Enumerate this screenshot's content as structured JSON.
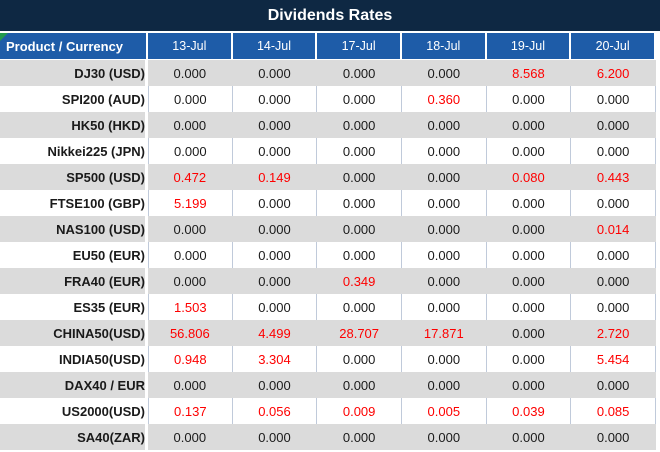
{
  "title": "Dividends Rates",
  "columns": {
    "product_header": "Product / Currency",
    "dates": [
      "13-Jul",
      "14-Jul",
      "17-Jul",
      "18-Jul",
      "19-Jul",
      "20-Jul"
    ]
  },
  "rows": [
    {
      "product": "DJ30 (USD)",
      "values": [
        "0.000",
        "0.000",
        "0.000",
        "0.000",
        "8.568",
        "6.200"
      ],
      "red": [
        false,
        false,
        false,
        false,
        true,
        true
      ]
    },
    {
      "product": "SPI200 (AUD)",
      "values": [
        "0.000",
        "0.000",
        "0.000",
        "0.360",
        "0.000",
        "0.000"
      ],
      "red": [
        false,
        false,
        false,
        true,
        false,
        false
      ]
    },
    {
      "product": "HK50 (HKD)",
      "values": [
        "0.000",
        "0.000",
        "0.000",
        "0.000",
        "0.000",
        "0.000"
      ],
      "red": [
        false,
        false,
        false,
        false,
        false,
        false
      ]
    },
    {
      "product": "Nikkei225 (JPN)",
      "values": [
        "0.000",
        "0.000",
        "0.000",
        "0.000",
        "0.000",
        "0.000"
      ],
      "red": [
        false,
        false,
        false,
        false,
        false,
        false
      ]
    },
    {
      "product": "SP500 (USD)",
      "values": [
        "0.472",
        "0.149",
        "0.000",
        "0.000",
        "0.080",
        "0.443"
      ],
      "red": [
        true,
        true,
        false,
        false,
        true,
        true
      ]
    },
    {
      "product": "FTSE100 (GBP)",
      "values": [
        "5.199",
        "0.000",
        "0.000",
        "0.000",
        "0.000",
        "0.000"
      ],
      "red": [
        true,
        false,
        false,
        false,
        false,
        false
      ]
    },
    {
      "product": "NAS100 (USD)",
      "values": [
        "0.000",
        "0.000",
        "0.000",
        "0.000",
        "0.000",
        "0.014"
      ],
      "red": [
        false,
        false,
        false,
        false,
        false,
        true
      ]
    },
    {
      "product": "EU50 (EUR)",
      "values": [
        "0.000",
        "0.000",
        "0.000",
        "0.000",
        "0.000",
        "0.000"
      ],
      "red": [
        false,
        false,
        false,
        false,
        false,
        false
      ]
    },
    {
      "product": "FRA40 (EUR)",
      "values": [
        "0.000",
        "0.000",
        "0.349",
        "0.000",
        "0.000",
        "0.000"
      ],
      "red": [
        false,
        false,
        true,
        false,
        false,
        false
      ]
    },
    {
      "product": "ES35 (EUR)",
      "values": [
        "1.503",
        "0.000",
        "0.000",
        "0.000",
        "0.000",
        "0.000"
      ],
      "red": [
        true,
        false,
        false,
        false,
        false,
        false
      ]
    },
    {
      "product": "CHINA50(USD)",
      "values": [
        "56.806",
        "4.499",
        "28.707",
        "17.871",
        "0.000",
        "2.720"
      ],
      "red": [
        true,
        true,
        true,
        true,
        false,
        true
      ]
    },
    {
      "product": "INDIA50(USD)",
      "values": [
        "0.948",
        "3.304",
        "0.000",
        "0.000",
        "0.000",
        "5.454"
      ],
      "red": [
        true,
        true,
        false,
        false,
        false,
        true
      ]
    },
    {
      "product": "DAX40 / EUR",
      "values": [
        "0.000",
        "0.000",
        "0.000",
        "0.000",
        "0.000",
        "0.000"
      ],
      "red": [
        false,
        false,
        false,
        false,
        false,
        false
      ]
    },
    {
      "product": "US2000(USD)",
      "values": [
        "0.137",
        "0.056",
        "0.009",
        "0.005",
        "0.039",
        "0.085"
      ],
      "red": [
        true,
        true,
        true,
        true,
        true,
        true
      ]
    },
    {
      "product": "SA40(ZAR)",
      "values": [
        "0.000",
        "0.000",
        "0.000",
        "0.000",
        "0.000",
        "0.000"
      ],
      "red": [
        false,
        false,
        false,
        false,
        false,
        false
      ]
    }
  ],
  "colors": {
    "title_bg": "#0E2843",
    "header_bg": "#1E5CA8",
    "row_alt_bg": "#DBDBDB",
    "row_bg": "#FFFFFF",
    "value_text": "#1A1A1A",
    "negative_value_text": "#FE0000",
    "gridline": "#C0CADA",
    "indicator_green": "#229A4D"
  },
  "icons": {
    "error_indicator": "green-triangle"
  }
}
